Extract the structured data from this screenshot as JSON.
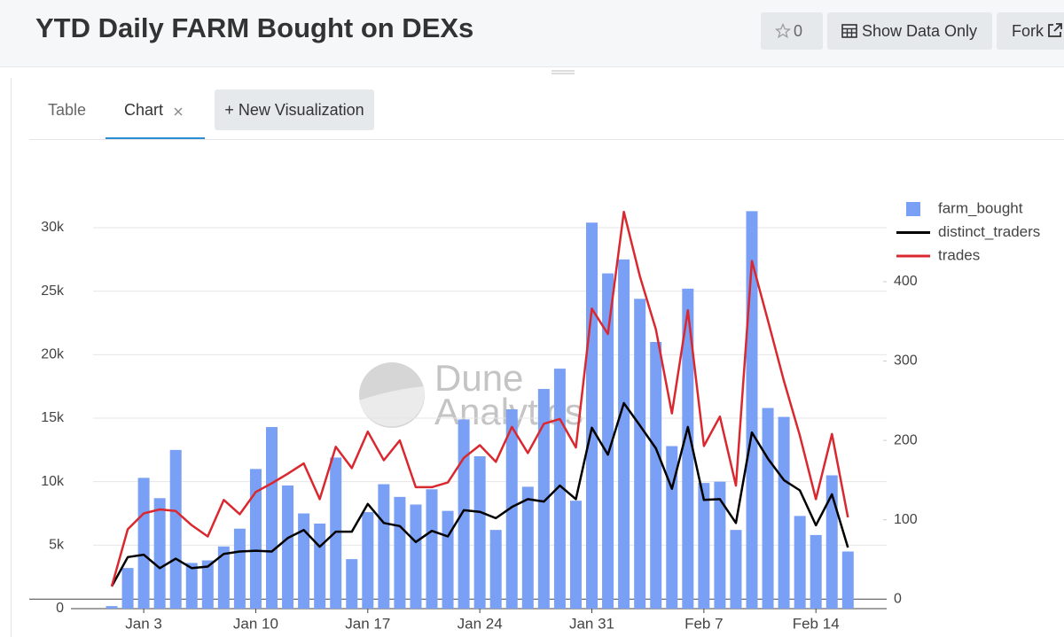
{
  "header": {
    "title": "YTD Daily FARM Bought on DEXs",
    "stars": "0",
    "show_data": "Show Data Only",
    "fork": "Fork"
  },
  "tabs": [
    "Table",
    "Chart"
  ],
  "new_visualization": "+ New Visualization",
  "watermark": [
    "Dune",
    "Analytics"
  ],
  "chart_data": {
    "type": "bar",
    "categories": [
      null,
      null,
      "Jan 3",
      null,
      null,
      null,
      null,
      null,
      null,
      "Jan 10",
      null,
      null,
      null,
      null,
      null,
      null,
      "Jan 17",
      null,
      null,
      null,
      null,
      null,
      null,
      "Jan 24",
      null,
      null,
      null,
      null,
      null,
      null,
      "Jan 31",
      null,
      null,
      null,
      null,
      null,
      null,
      "Feb 7",
      null,
      null,
      null,
      null,
      null,
      null,
      "Feb 14",
      null,
      null
    ],
    "series": [
      {
        "name": "farm_bought",
        "type": "bar",
        "color": "#7aa0f5",
        "axis": "y",
        "values": [
          200,
          3200,
          10300,
          8700,
          12500,
          3600,
          3800,
          4900,
          6300,
          11000,
          14300,
          9700,
          7500,
          6700,
          11900,
          3900,
          7600,
          9800,
          8800,
          8200,
          9400,
          7700,
          14900,
          12000,
          6200,
          15700,
          9600,
          17300,
          18900,
          8500,
          30400,
          26400,
          27500,
          24400,
          21000,
          12800,
          25200,
          9900,
          10000,
          6200,
          31300,
          15800,
          15100,
          7300,
          5800,
          10500,
          4500
        ]
      },
      {
        "name": "distinct_traders",
        "type": "line",
        "color": "#000000",
        "axis": "y2",
        "values": [
          16,
          53,
          56,
          39,
          51,
          39,
          41,
          57,
          60,
          61,
          60,
          77,
          87,
          66,
          85,
          85,
          120,
          96,
          92,
          72,
          86,
          79,
          112,
          110,
          102,
          116,
          126,
          123,
          143,
          126,
          216,
          182,
          247,
          219,
          190,
          139,
          217,
          125,
          126,
          96,
          210,
          177,
          150,
          137,
          93,
          132,
          65
        ]
      },
      {
        "name": "trades",
        "type": "line",
        "color": "#d9282f",
        "axis": "y2",
        "values": [
          16,
          88,
          108,
          113,
          111,
          93,
          79,
          125,
          107,
          135,
          146,
          158,
          171,
          126,
          192,
          165,
          211,
          175,
          200,
          141,
          141,
          147,
          178,
          194,
          173,
          217,
          184,
          221,
          227,
          191,
          366,
          334,
          488,
          407,
          340,
          234,
          364,
          193,
          230,
          143,
          426,
          351,
          275,
          206,
          126,
          208,
          103
        ]
      }
    ],
    "ylim": [
      0,
      33000
    ],
    "yticks": [
      0,
      {
        "value": 5000,
        "label": "5k"
      },
      {
        "value": 10000,
        "label": "10k"
      },
      {
        "value": 15000,
        "label": "15k"
      },
      {
        "value": 20000,
        "label": "20k"
      },
      {
        "value": 25000,
        "label": "25k"
      },
      {
        "value": 30000,
        "label": "30k"
      }
    ],
    "y2lim": [
      -12,
      516
    ],
    "y2ticks": [
      0,
      100,
      200,
      300,
      400
    ],
    "grid": true,
    "legend": "right"
  }
}
